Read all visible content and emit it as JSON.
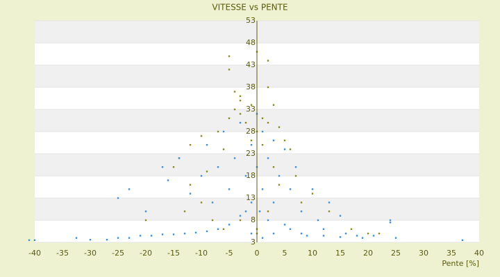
{
  "chart_data": {
    "type": "scatter",
    "title": "VITESSE vs PENTE",
    "x_label": "Pente [%]",
    "xlim": [
      -40,
      40
    ],
    "xticks": [
      -40,
      -35,
      -30,
      -25,
      -20,
      -15,
      -10,
      -5,
      0,
      5,
      10,
      15,
      20,
      25,
      30,
      35,
      40
    ],
    "ylim": [
      3,
      53
    ],
    "yticks": [
      3,
      8,
      13,
      18,
      23,
      28,
      33,
      38,
      43,
      48,
      53
    ],
    "grid": true,
    "series": [
      {
        "color": "#8a8a1a",
        "x": [
          -5,
          -5,
          -4,
          -3,
          -3,
          -4,
          -5,
          -3,
          -2,
          -1,
          0,
          1,
          2,
          2,
          3,
          4,
          5,
          6,
          -7,
          -10,
          -12,
          -14,
          -15,
          -12,
          -10,
          -8,
          -6,
          -3,
          -1,
          0,
          1,
          2,
          3,
          4,
          7,
          8,
          10,
          13,
          17,
          20,
          22,
          -20,
          -13,
          -9,
          -6,
          0,
          0,
          2
        ],
        "y": [
          45,
          42,
          37,
          36,
          35,
          33,
          31,
          32,
          30,
          34,
          46,
          31,
          44,
          38,
          34,
          29,
          26,
          24,
          28,
          27,
          25,
          22,
          20,
          16,
          12,
          8,
          6,
          8,
          26,
          28,
          25,
          30,
          20,
          16,
          18,
          12,
          14,
          10,
          6,
          5,
          5,
          8,
          10,
          19,
          24,
          6,
          5,
          10
        ]
      },
      {
        "color": "#3c8fdc",
        "x": [
          -41,
          -40,
          -32.5,
          -30,
          -27,
          -25,
          -23,
          -21,
          -19,
          -17,
          -15,
          -13,
          -11,
          -9,
          -7,
          -5,
          -3,
          -1,
          -20,
          -25,
          -23,
          -17,
          -16,
          -14,
          -12,
          -10,
          -9,
          -8,
          -7,
          -6,
          -5,
          -4,
          -3,
          -2,
          -1,
          0,
          0,
          0.5,
          1,
          1,
          2,
          2,
          3,
          3,
          4,
          5,
          5,
          6,
          7,
          8,
          8,
          10,
          11,
          12,
          13,
          15,
          16,
          18,
          19,
          21,
          24,
          24,
          25,
          37,
          -2,
          -1,
          1,
          3,
          6,
          9,
          12,
          15
        ],
        "y": [
          3.5,
          3.5,
          4,
          3.6,
          3.6,
          4,
          4,
          4.5,
          4.5,
          4.8,
          4.8,
          5,
          5.2,
          5.5,
          6,
          7,
          9,
          12,
          10,
          13,
          15,
          20,
          17,
          22,
          14,
          18,
          25,
          12,
          20,
          28,
          15,
          22,
          30,
          18,
          25,
          32,
          20,
          10,
          28,
          15,
          22,
          8,
          26,
          12,
          18,
          24,
          7,
          15,
          20,
          10,
          5,
          15,
          8,
          6,
          12,
          9,
          5,
          4.5,
          4,
          4.5,
          8,
          7.5,
          4,
          3.5,
          10,
          5,
          4,
          5,
          6,
          4.5,
          4.5,
          4.2
        ]
      }
    ]
  }
}
